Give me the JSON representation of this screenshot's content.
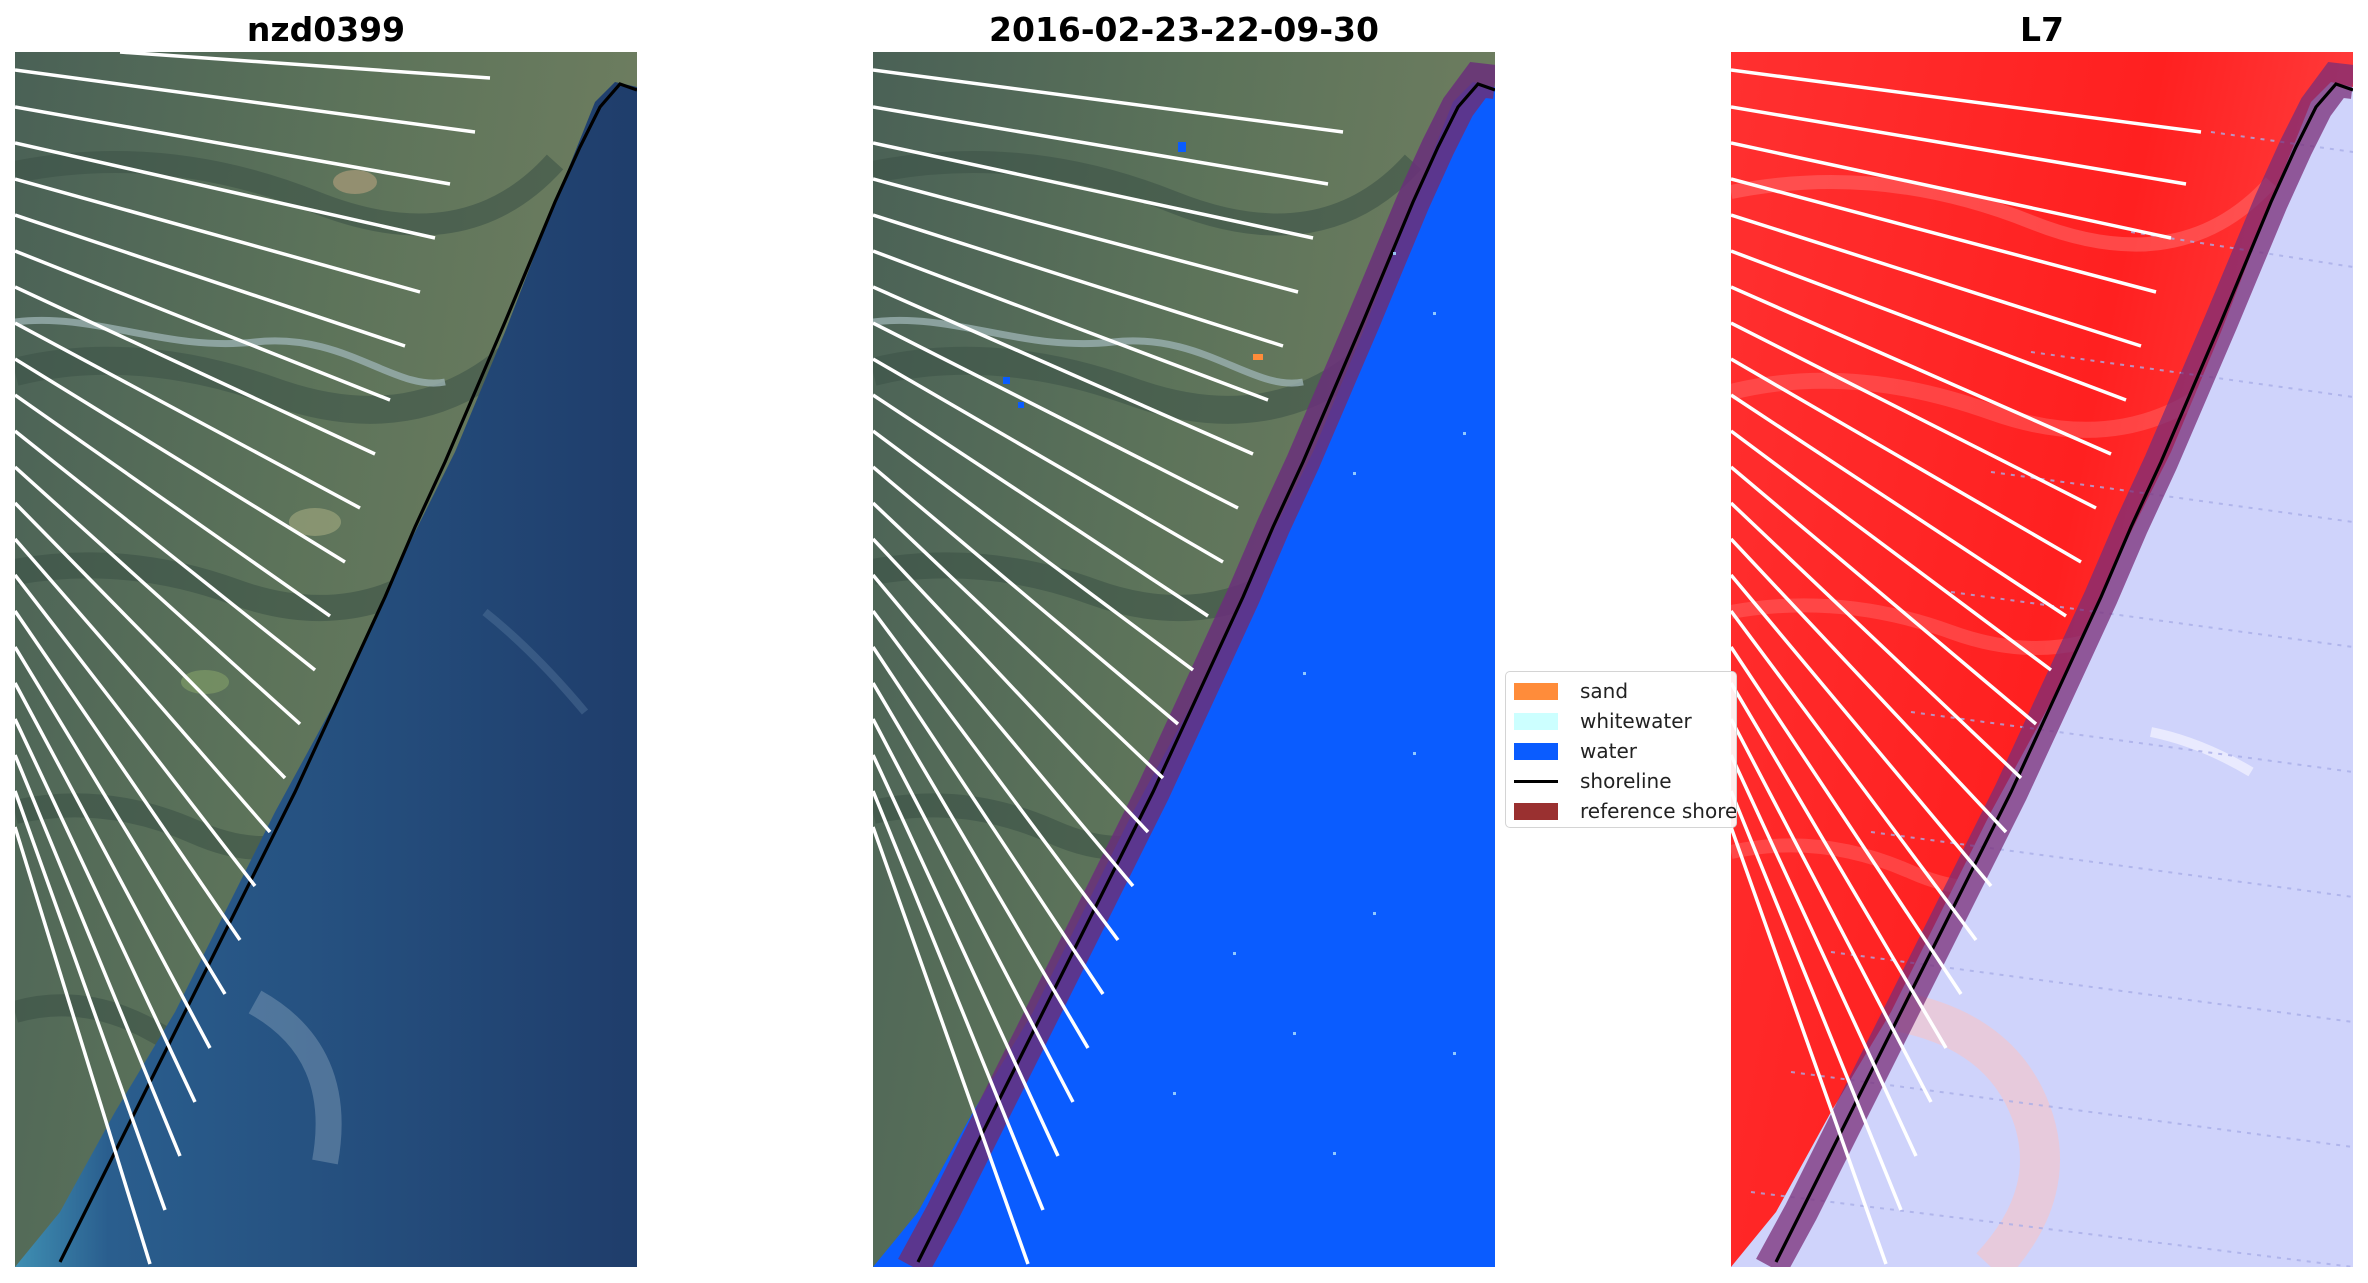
{
  "panels": [
    {
      "title": "nzd0399",
      "view": "rgb-composite"
    },
    {
      "title": "2016-02-23-22-09-30",
      "view": "classified-overlay"
    },
    {
      "title": "L7",
      "view": "water-index"
    }
  ],
  "legend": {
    "items": [
      {
        "label": "sand",
        "color": "#ff8c3a",
        "kind": "patch"
      },
      {
        "label": "whitewater",
        "color": "#ccffff",
        "kind": "patch"
      },
      {
        "label": "water",
        "color": "#0a5cff",
        "kind": "patch"
      },
      {
        "label": "shoreline",
        "color": "#000000",
        "kind": "line"
      },
      {
        "label": "reference shore",
        "color": "#9a3030",
        "kind": "patch"
      }
    ]
  },
  "colors": {
    "land": "#4f6a55",
    "sea_deep": "#1f3f6e",
    "sea_shallow": "#3d8cb0",
    "water_class": "#0a5cff",
    "index_land": "#ff2a2a",
    "index_water": "#cfd3fb",
    "reference_band": "#6a2f7a"
  }
}
